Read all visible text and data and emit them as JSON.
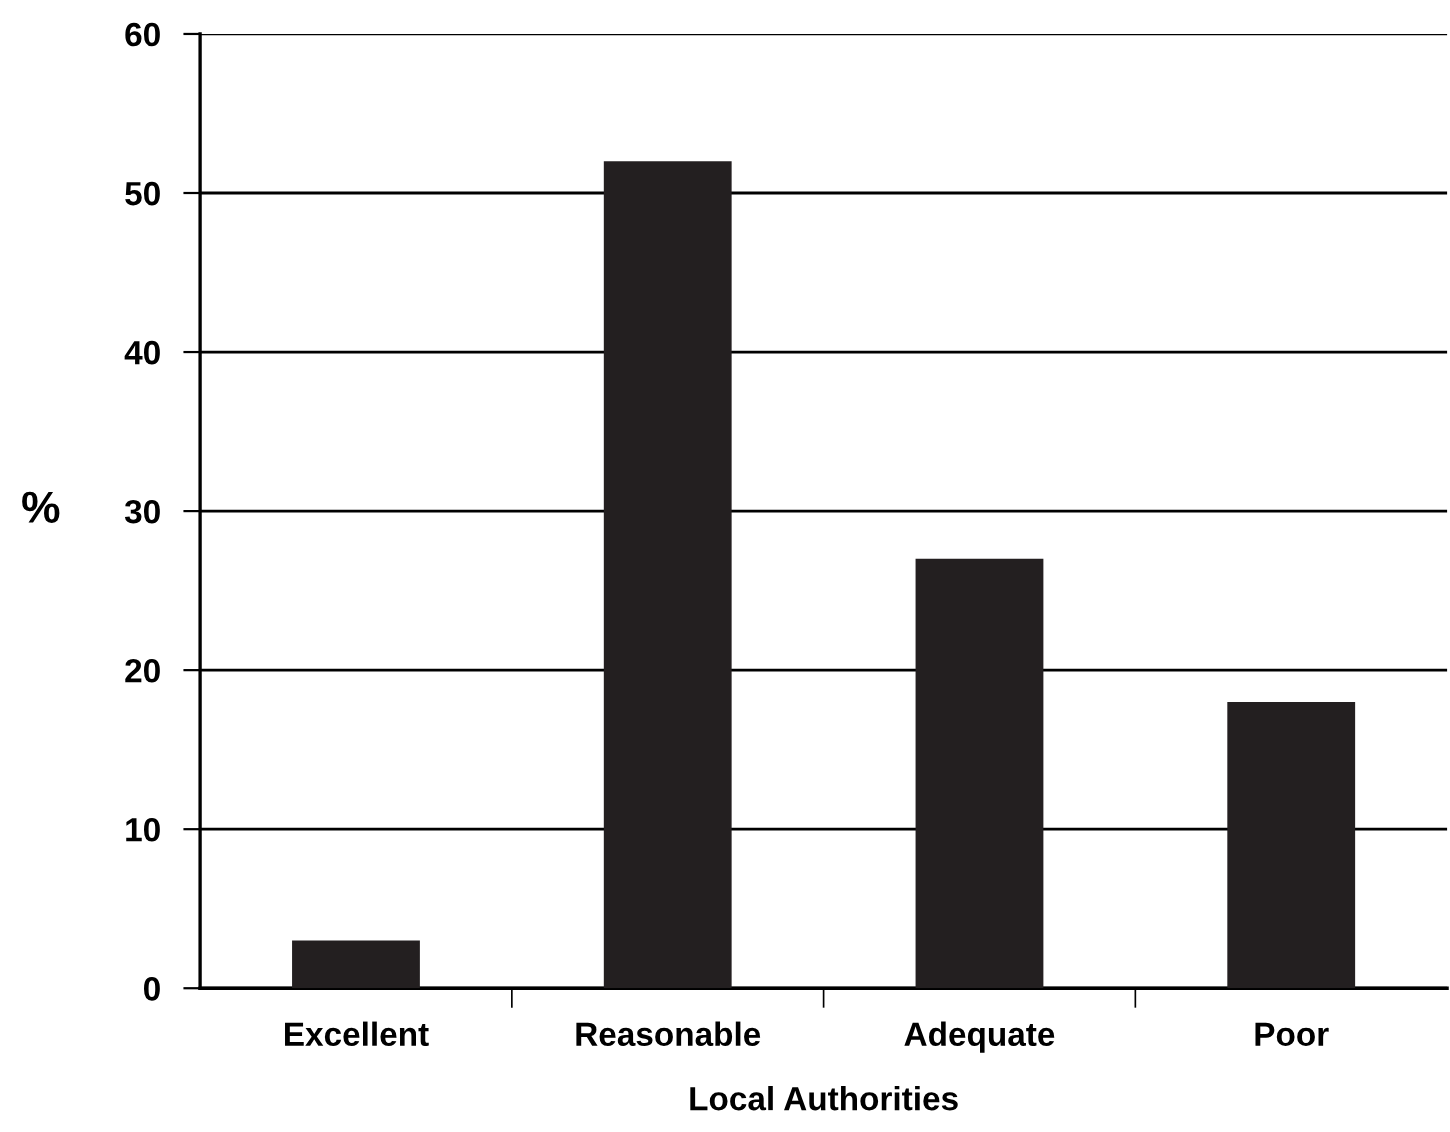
{
  "chart_data": {
    "type": "bar",
    "xlabel": "Local Authorities",
    "ylabel": "%",
    "categories": [
      "Excellent",
      "Reasonable",
      "Adequate",
      "Poor"
    ],
    "values": [
      3,
      52,
      27,
      18
    ],
    "color": "#231f20",
    "ylim": [
      0,
      60
    ],
    "yticks": [
      0,
      10,
      20,
      30,
      40,
      50,
      60
    ],
    "grid": "y"
  }
}
